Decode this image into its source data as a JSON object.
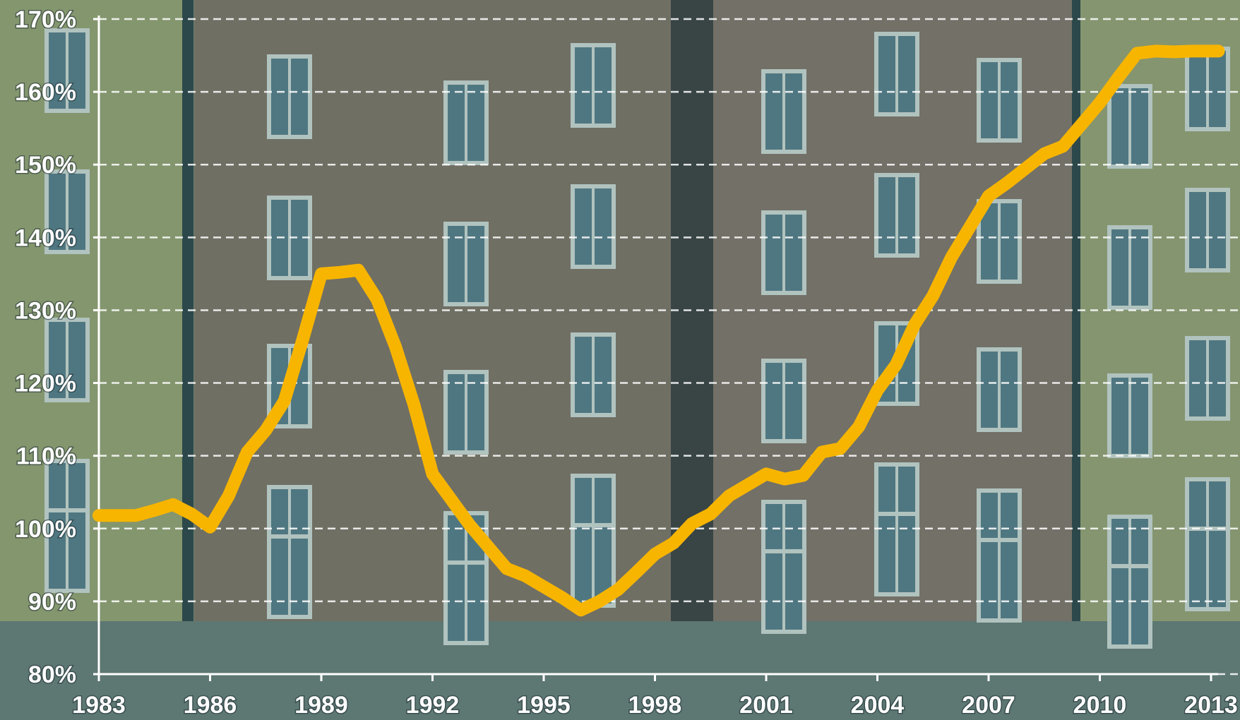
{
  "chart_data": {
    "type": "line",
    "x": [
      1983,
      1984,
      1984.5,
      1985,
      1985.5,
      1986,
      1986.5,
      1987,
      1987.5,
      1988,
      1988.5,
      1989,
      1989.5,
      1990,
      1990.5,
      1991,
      1991.5,
      1992,
      1992.5,
      1993,
      1993.5,
      1994,
      1994.5,
      1995,
      1995.5,
      1996,
      1996.5,
      1997,
      1997.5,
      1998,
      1998.5,
      1999,
      1999.5,
      2000,
      2000.5,
      2001,
      2001.5,
      2002,
      2002.5,
      2003,
      2003.5,
      2004,
      2004.5,
      2005,
      2005.5,
      2006,
      2006.5,
      2007,
      2007.5,
      2008,
      2008.5,
      2009,
      2009.5,
      2010,
      2010.5,
      2011,
      2011.5,
      2012,
      2012.5,
      2013.2
    ],
    "series": [
      {
        "color": "#f7b500",
        "values": [
          101.8,
          101.8,
          102.5,
          103.3,
          102,
          100.2,
          104.5,
          110.5,
          113.5,
          117.5,
          126,
          135,
          135.2,
          135.5,
          131.5,
          125,
          117,
          107.5,
          104,
          100.5,
          97.5,
          94.5,
          93.5,
          92,
          90.5,
          88.8,
          90,
          91.6,
          94,
          96.5,
          98,
          100.7,
          102,
          104.5,
          106,
          107.5,
          106.8,
          107.3,
          110.5,
          111,
          114,
          119,
          122.5,
          128,
          132,
          137.3,
          141.5,
          145.7,
          147.5,
          149.5,
          151.5,
          152.5,
          155.5,
          158.5,
          162,
          165.3,
          165.6,
          165.5,
          165.6,
          165.6
        ]
      }
    ],
    "xlim": [
      1983,
      2013
    ],
    "xticks": [
      1983,
      1986,
      1989,
      1992,
      1995,
      1998,
      2001,
      2004,
      2007,
      2010,
      2013
    ],
    "ylim": [
      80,
      170
    ],
    "yticks": [
      {
        "value": 80,
        "label": "80%"
      },
      {
        "value": 90,
        "label": "90%"
      },
      {
        "value": 100,
        "label": "100%"
      },
      {
        "value": 110,
        "label": "110%"
      },
      {
        "value": 120,
        "label": "120%"
      },
      {
        "value": 130,
        "label": "130%"
      },
      {
        "value": 140,
        "label": "140%"
      },
      {
        "value": 150,
        "label": "150%"
      },
      {
        "value": 160,
        "label": "160%"
      },
      {
        "value": 170,
        "label": "170%"
      }
    ],
    "grid": true
  }
}
